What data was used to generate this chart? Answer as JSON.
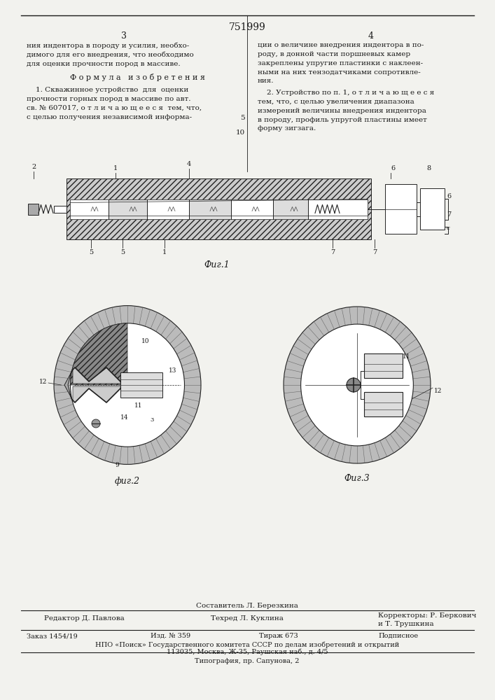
{
  "patent_number": "751999",
  "page_left": "3",
  "page_right": "4",
  "bg_color": "#f2f2ee",
  "text_color": "#1a1a1a",
  "top_text_left": "ния индентора в породу и усилия, необхо-\nдимого для его внедрения, что необходимо\nдля оценки прочности пород в массиве.",
  "formula_header": "Ф о р м у л а   и з о б р е т е н и я",
  "claim1_text": "    1. Скважинное устройство  для  оценки\nпрочности горных пород в массиве по авт.\nсв. № 607017, о т л и ч а ю щ е е с я  тем, что,\nс целью получения независимой информа-",
  "line_number_5": "5",
  "top_text_right": "ции о величине внедрения индентора в по-\nроду, в донной части поршневых камер\nзакреплены упругие пластинки с наклеен-\nными на них тензодатчиками сопротивле-\nния.",
  "claim2_text": "    2. Устройство по п. 1, о т л и ч а ю щ е е с я\nтем, что, с целью увеличения диапазона\nизмерений величины внедрения индентора\nв породу, профиль упругой пластины имеет\nформу зигзага.",
  "line_number_10": "10",
  "fig1_label": "Фиг.1",
  "fig2_label": "фиг.2",
  "fig3_label": "Фиг.3",
  "bottom_sestavitel": "Составитель Л. Березкина",
  "bottom_editor": "Редактор Д. Павлова",
  "bottom_tehred": "Техред Л. Куклина",
  "bottom_korrektor1": "Корректоры: Р. Беркович",
  "bottom_korrektor2": "и Т. Трушкина",
  "bottom_zakaz": "Заказ 1454/19",
  "bottom_izd": "Изд. № 359",
  "bottom_tirazh": "Тираж 673",
  "bottom_podpisnoe": "Подписное",
  "bottom_npo": "НПО «Поиск» Государственного комитета СССР по делам изобретений и открытий",
  "bottom_address": "113035, Москва, Ж-35, Раушская наб., д. 4/5",
  "bottom_tipografia": "Типография, пр. Сапунова, 2"
}
